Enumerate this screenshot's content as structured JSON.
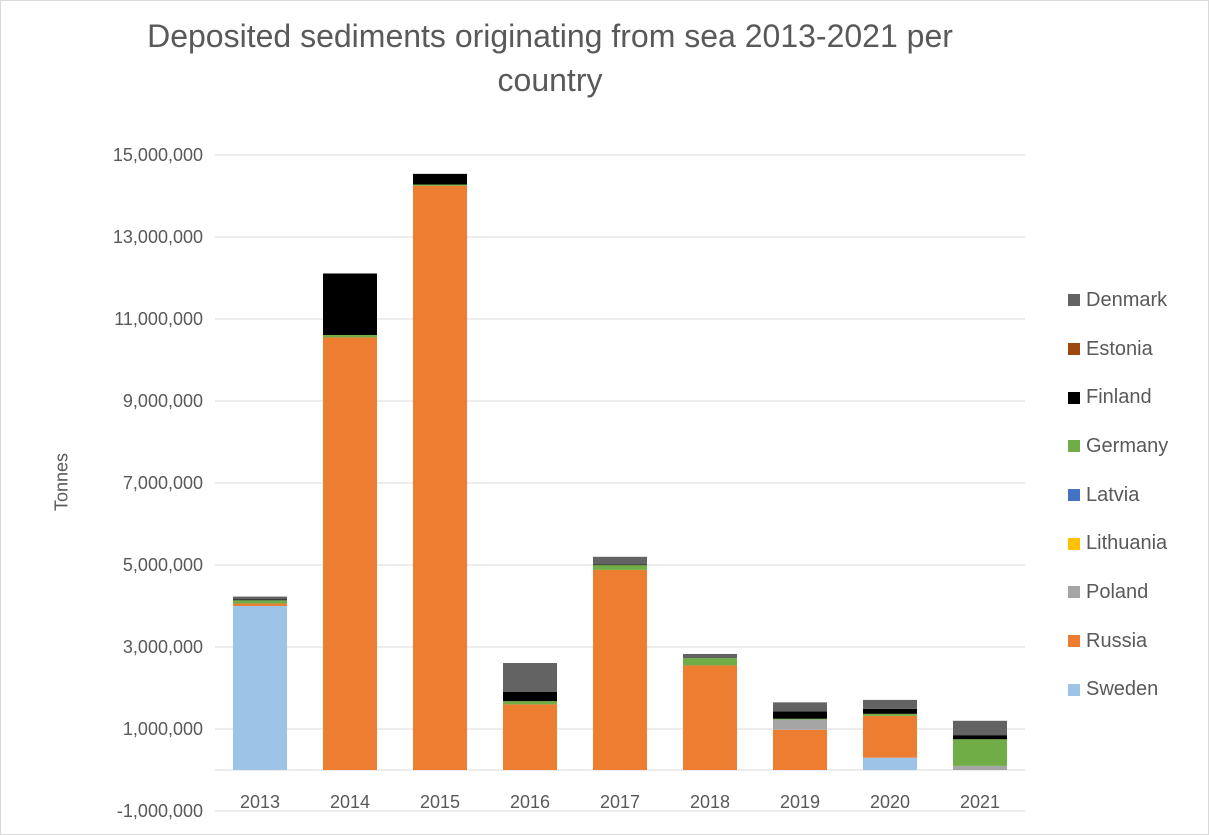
{
  "chart_data": {
    "type": "bar",
    "stacked": true,
    "title": "Deposited sediments originating from sea 2013-2021 per country",
    "xlabel": "",
    "ylabel": "Tonnes",
    "ylim": [
      -1000000,
      15000000
    ],
    "yticks": [
      -1000000,
      1000000,
      3000000,
      5000000,
      7000000,
      9000000,
      11000000,
      13000000,
      15000000
    ],
    "ytick_labels": [
      "-1,000,000",
      "1,000,000",
      "3,000,000",
      "5,000,000",
      "7,000,000",
      "9,000,000",
      "11,000,000",
      "13,000,000",
      "15,000,000"
    ],
    "grid": true,
    "legend_position": "right",
    "categories": [
      "2013",
      "2014",
      "2015",
      "2016",
      "2017",
      "2018",
      "2019",
      "2020",
      "2021"
    ],
    "series": [
      {
        "name": "Sweden",
        "color": "#9dc3e6",
        "values": [
          4000000,
          0,
          0,
          0,
          0,
          0,
          0,
          300000,
          0
        ]
      },
      {
        "name": "Russia",
        "color": "#ed7d31",
        "values": [
          60000,
          10550000,
          14250000,
          1600000,
          4880000,
          2550000,
          980000,
          1020000,
          0
        ]
      },
      {
        "name": "Poland",
        "color": "#a5a5a5",
        "values": [
          0,
          0,
          0,
          0,
          0,
          0,
          250000,
          0,
          100000
        ]
      },
      {
        "name": "Lithuania",
        "color": "#ffc000",
        "values": [
          0,
          0,
          0,
          0,
          0,
          0,
          0,
          0,
          0
        ]
      },
      {
        "name": "Latvia",
        "color": "#4472c4",
        "values": [
          0,
          0,
          0,
          0,
          0,
          0,
          0,
          0,
          0
        ]
      },
      {
        "name": "Germany",
        "color": "#70ad47",
        "values": [
          80000,
          60000,
          30000,
          80000,
          120000,
          180000,
          20000,
          50000,
          650000
        ]
      },
      {
        "name": "Finland",
        "color": "#000000",
        "values": [
          20000,
          1500000,
          260000,
          230000,
          10000,
          0,
          180000,
          120000,
          100000
        ]
      },
      {
        "name": "Estonia",
        "color": "#9e480e",
        "values": [
          0,
          0,
          0,
          0,
          0,
          0,
          0,
          0,
          0
        ]
      },
      {
        "name": "Denmark",
        "color": "#636363",
        "values": [
          70000,
          0,
          0,
          700000,
          190000,
          100000,
          220000,
          220000,
          350000
        ]
      }
    ]
  }
}
